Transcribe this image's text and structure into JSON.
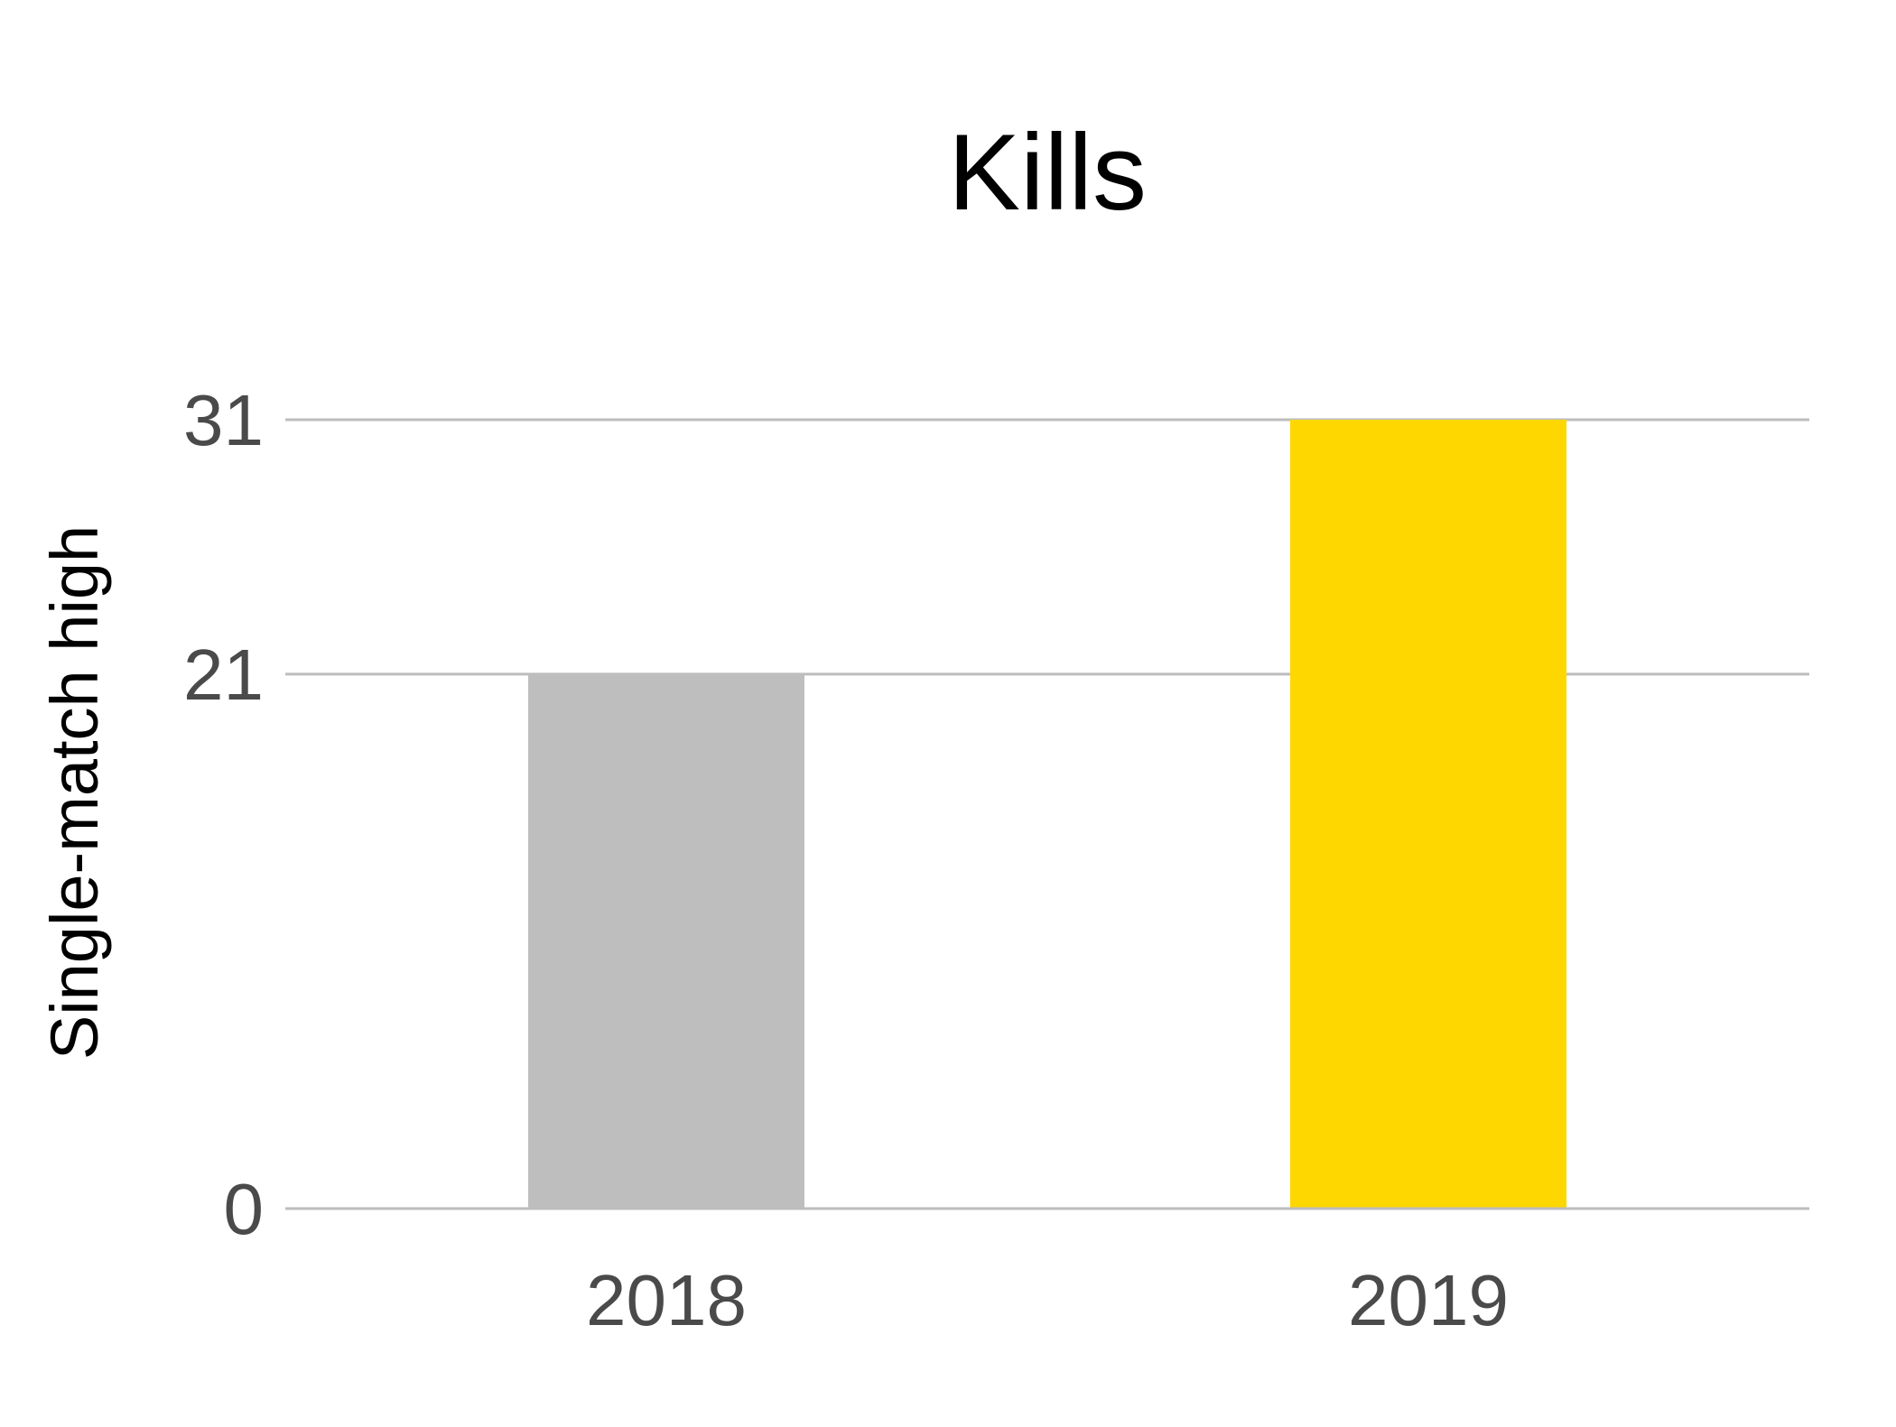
{
  "chart_data": {
    "type": "bar",
    "title": "Kills",
    "ylabel": "Single-match high",
    "xlabel": "",
    "categories": [
      "2018",
      "2019"
    ],
    "values": [
      21,
      31
    ],
    "bar_colors": [
      "#bebebe",
      "#ffd700"
    ],
    "ylim": [
      0,
      31
    ],
    "yticks": [
      0,
      21,
      31
    ],
    "ytick_labels": [
      "0",
      "21",
      "31"
    ],
    "grid": "horizontal",
    "grid_color": "#bdbdbd",
    "legend": "none"
  }
}
